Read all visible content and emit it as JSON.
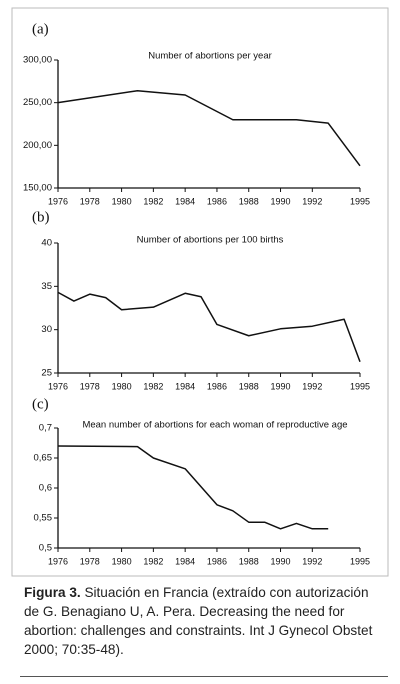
{
  "chart_data": [
    {
      "type": "line",
      "panel_label": "(a)",
      "title": "Number of abortions per year",
      "x": [
        1976,
        1981,
        1984,
        1987,
        1991,
        1993,
        1995
      ],
      "series": [
        {
          "color": "#111111",
          "values": [
            250,
            264,
            259,
            230,
            230,
            226,
            176
          ]
        }
      ],
      "xlim": [
        1976,
        1995
      ],
      "xticks": [
        1976,
        1978,
        1980,
        1982,
        1984,
        1986,
        1988,
        1990,
        1992,
        1995
      ],
      "ylim": [
        150,
        300
      ],
      "yticks": [
        {
          "value": 150,
          "label": "150,00"
        },
        {
          "value": 200,
          "label": "200,00"
        },
        {
          "value": 250,
          "label": "250,00"
        },
        {
          "value": 300,
          "label": "300,00"
        }
      ]
    },
    {
      "type": "line",
      "panel_label": "(b)",
      "title": "Number of abortions per 100 births",
      "x": [
        1976,
        1977,
        1978,
        1979,
        1980,
        1982,
        1984,
        1985,
        1986,
        1988,
        1990,
        1992,
        1994,
        1995
      ],
      "series": [
        {
          "color": "#111111",
          "values": [
            34.3,
            33.3,
            34.1,
            33.7,
            32.3,
            32.6,
            34.2,
            33.8,
            30.6,
            29.3,
            30.1,
            30.4,
            31.2,
            26.3
          ]
        }
      ],
      "xlim": [
        1976,
        1995
      ],
      "xticks": [
        1976,
        1978,
        1980,
        1982,
        1984,
        1986,
        1988,
        1990,
        1992,
        1995
      ],
      "ylim": [
        25,
        40
      ],
      "yticks": [
        25,
        30,
        35,
        40
      ]
    },
    {
      "type": "line",
      "panel_label": "(c)",
      "title": "Mean number of abortions for each woman of reproductive age",
      "x": [
        1976,
        1981,
        1982,
        1984,
        1986,
        1987,
        1988,
        1989,
        1990,
        1991,
        1992,
        1993
      ],
      "series": [
        {
          "color": "#111111",
          "values": [
            0.67,
            0.669,
            0.65,
            0.632,
            0.572,
            0.562,
            0.543,
            0.543,
            0.532,
            0.541,
            0.532,
            0.532
          ]
        }
      ],
      "xlim": [
        1976,
        1995
      ],
      "xticks": [
        1976,
        1978,
        1980,
        1982,
        1984,
        1986,
        1988,
        1990,
        1992,
        1995
      ],
      "ylim": [
        0.5,
        0.7
      ],
      "yticks": [
        {
          "value": 0.5,
          "label": "0,5"
        },
        {
          "value": 0.55,
          "label": "0,55"
        },
        {
          "value": 0.6,
          "label": "0,6"
        },
        {
          "value": 0.65,
          "label": "0,65"
        },
        {
          "value": 0.7,
          "label": "0,7"
        }
      ]
    }
  ],
  "caption": {
    "label": "Figura 3.",
    "text": "Situación en Francia (extraído con autorización de G. Benagiano U, A. Pera. Decreasing the need for abortion: challenges and constraints. Int J Gynecol Obstet 2000; 70:35-48)."
  }
}
